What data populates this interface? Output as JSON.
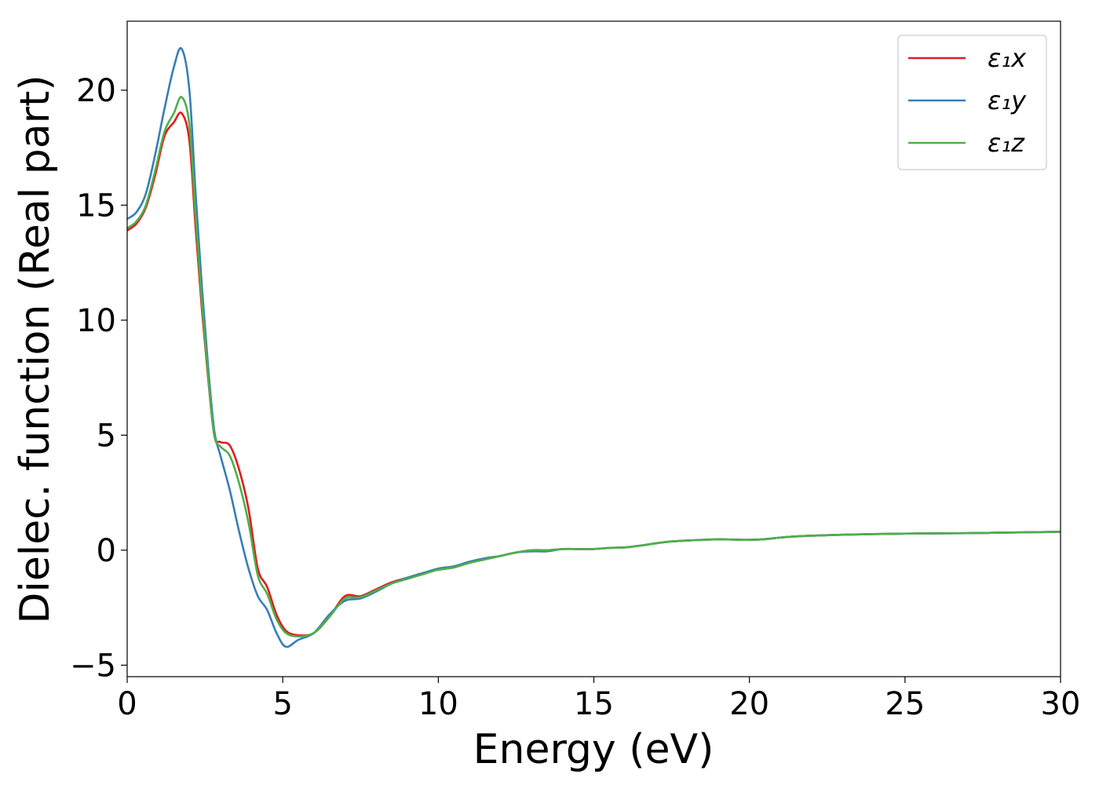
{
  "chart_data": {
    "type": "line",
    "xlabel": "Energy (eV)",
    "ylabel": "Dielec. function (Real part)",
    "xlim": [
      0,
      30
    ],
    "ylim": [
      -5.5,
      23
    ],
    "xticks": [
      0,
      5,
      10,
      15,
      20,
      25,
      30
    ],
    "xtick_labels": [
      "0",
      "5",
      "10",
      "15",
      "20",
      "25",
      "30"
    ],
    "yticks": [
      -5,
      0,
      5,
      10,
      15,
      20
    ],
    "ytick_labels": [
      "−5",
      "0",
      "5",
      "10",
      "15",
      "20"
    ],
    "grid": false,
    "legend_position": "top-right",
    "series": [
      {
        "name": "ε₁x",
        "color": "#e41a1c",
        "x": [
          0,
          0.3,
          0.6,
          0.9,
          1.2,
          1.5,
          1.75,
          2.0,
          2.2,
          2.4,
          2.6,
          2.8,
          3.0,
          3.3,
          3.6,
          3.9,
          4.2,
          4.5,
          4.8,
          5.1,
          5.5,
          6.0,
          6.5,
          7.0,
          7.5,
          8.0,
          8.5,
          9.0,
          9.5,
          10.0,
          10.5,
          11.0,
          11.5,
          12.0,
          12.5,
          13.0,
          13.5,
          14.0,
          14.5,
          15.0,
          15.5,
          16.0,
          16.5,
          17.0,
          17.5,
          18.0,
          18.5,
          19.0,
          19.5,
          20.0,
          20.5,
          21.0,
          21.5,
          22.0,
          23.0,
          24.0,
          25.0,
          26.0,
          27.0,
          28.0,
          29.0,
          30.0
        ],
        "values": [
          13.9,
          14.2,
          14.9,
          16.3,
          18.0,
          18.6,
          19.0,
          17.8,
          14.0,
          10.5,
          7.5,
          5.0,
          4.7,
          4.55,
          3.5,
          1.8,
          -0.8,
          -1.6,
          -2.8,
          -3.5,
          -3.7,
          -3.6,
          -2.9,
          -2.0,
          -2.0,
          -1.7,
          -1.4,
          -1.2,
          -1.0,
          -0.85,
          -0.75,
          -0.55,
          -0.4,
          -0.25,
          -0.1,
          0.0,
          0.0,
          0.05,
          0.05,
          0.05,
          0.1,
          0.12,
          0.2,
          0.3,
          0.38,
          0.42,
          0.45,
          0.47,
          0.46,
          0.45,
          0.48,
          0.55,
          0.6,
          0.63,
          0.67,
          0.7,
          0.72,
          0.73,
          0.74,
          0.76,
          0.78,
          0.8
        ]
      },
      {
        "name": "ε₁y",
        "color": "#377eb8",
        "x": [
          0,
          0.3,
          0.6,
          0.9,
          1.2,
          1.5,
          1.75,
          2.0,
          2.2,
          2.4,
          2.6,
          2.8,
          3.0,
          3.3,
          3.6,
          3.9,
          4.2,
          4.5,
          4.8,
          5.1,
          5.5,
          6.0,
          6.5,
          7.0,
          7.5,
          8.0,
          8.5,
          9.0,
          9.5,
          10.0,
          10.5,
          11.0,
          11.5,
          12.0,
          12.5,
          13.0,
          13.5,
          14.0,
          14.5,
          15.0,
          15.5,
          16.0,
          16.5,
          17.0,
          17.5,
          18.0,
          18.5,
          19.0,
          19.5,
          20.0,
          20.5,
          21.0,
          21.5,
          22.0,
          23.0,
          24.0,
          25.0,
          26.0,
          27.0,
          28.0,
          29.0,
          30.0
        ],
        "values": [
          14.4,
          14.7,
          15.5,
          17.2,
          19.2,
          21.0,
          21.8,
          20.0,
          15.5,
          11.5,
          8.0,
          5.2,
          4.1,
          2.6,
          0.8,
          -0.8,
          -2.0,
          -2.6,
          -3.6,
          -4.2,
          -3.9,
          -3.6,
          -2.8,
          -2.2,
          -2.1,
          -1.8,
          -1.45,
          -1.2,
          -1.0,
          -0.8,
          -0.7,
          -0.5,
          -0.35,
          -0.25,
          -0.1,
          -0.05,
          -0.05,
          0.05,
          0.05,
          0.05,
          0.1,
          0.12,
          0.2,
          0.3,
          0.38,
          0.42,
          0.45,
          0.47,
          0.46,
          0.45,
          0.48,
          0.55,
          0.6,
          0.63,
          0.67,
          0.7,
          0.72,
          0.73,
          0.74,
          0.76,
          0.78,
          0.8
        ]
      },
      {
        "name": "ε₁z",
        "color": "#4daf4a",
        "x": [
          0,
          0.3,
          0.6,
          0.9,
          1.2,
          1.5,
          1.75,
          2.0,
          2.2,
          2.4,
          2.6,
          2.8,
          3.0,
          3.3,
          3.6,
          3.9,
          4.2,
          4.5,
          4.8,
          5.1,
          5.5,
          6.0,
          6.5,
          7.0,
          7.5,
          8.0,
          8.5,
          9.0,
          9.5,
          10.0,
          10.5,
          11.0,
          11.5,
          12.0,
          12.5,
          13.0,
          13.5,
          14.0,
          14.5,
          15.0,
          15.5,
          16.0,
          16.5,
          17.0,
          17.5,
          18.0,
          18.5,
          19.0,
          19.5,
          20.0,
          20.5,
          21.0,
          21.5,
          22.0,
          23.0,
          24.0,
          25.0,
          26.0,
          27.0,
          28.0,
          29.0,
          30.0
        ],
        "values": [
          14.0,
          14.3,
          15.0,
          16.5,
          18.2,
          19.0,
          19.7,
          18.5,
          14.5,
          10.8,
          7.6,
          5.0,
          4.5,
          4.1,
          2.9,
          1.2,
          -1.1,
          -1.9,
          -3.0,
          -3.6,
          -3.75,
          -3.6,
          -2.9,
          -2.1,
          -2.05,
          -1.75,
          -1.45,
          -1.25,
          -1.05,
          -0.85,
          -0.75,
          -0.55,
          -0.4,
          -0.25,
          -0.1,
          0.0,
          0.0,
          0.05,
          0.05,
          0.05,
          0.1,
          0.12,
          0.2,
          0.3,
          0.38,
          0.42,
          0.45,
          0.47,
          0.46,
          0.45,
          0.48,
          0.55,
          0.6,
          0.63,
          0.67,
          0.7,
          0.72,
          0.73,
          0.74,
          0.76,
          0.78,
          0.8
        ]
      }
    ]
  }
}
